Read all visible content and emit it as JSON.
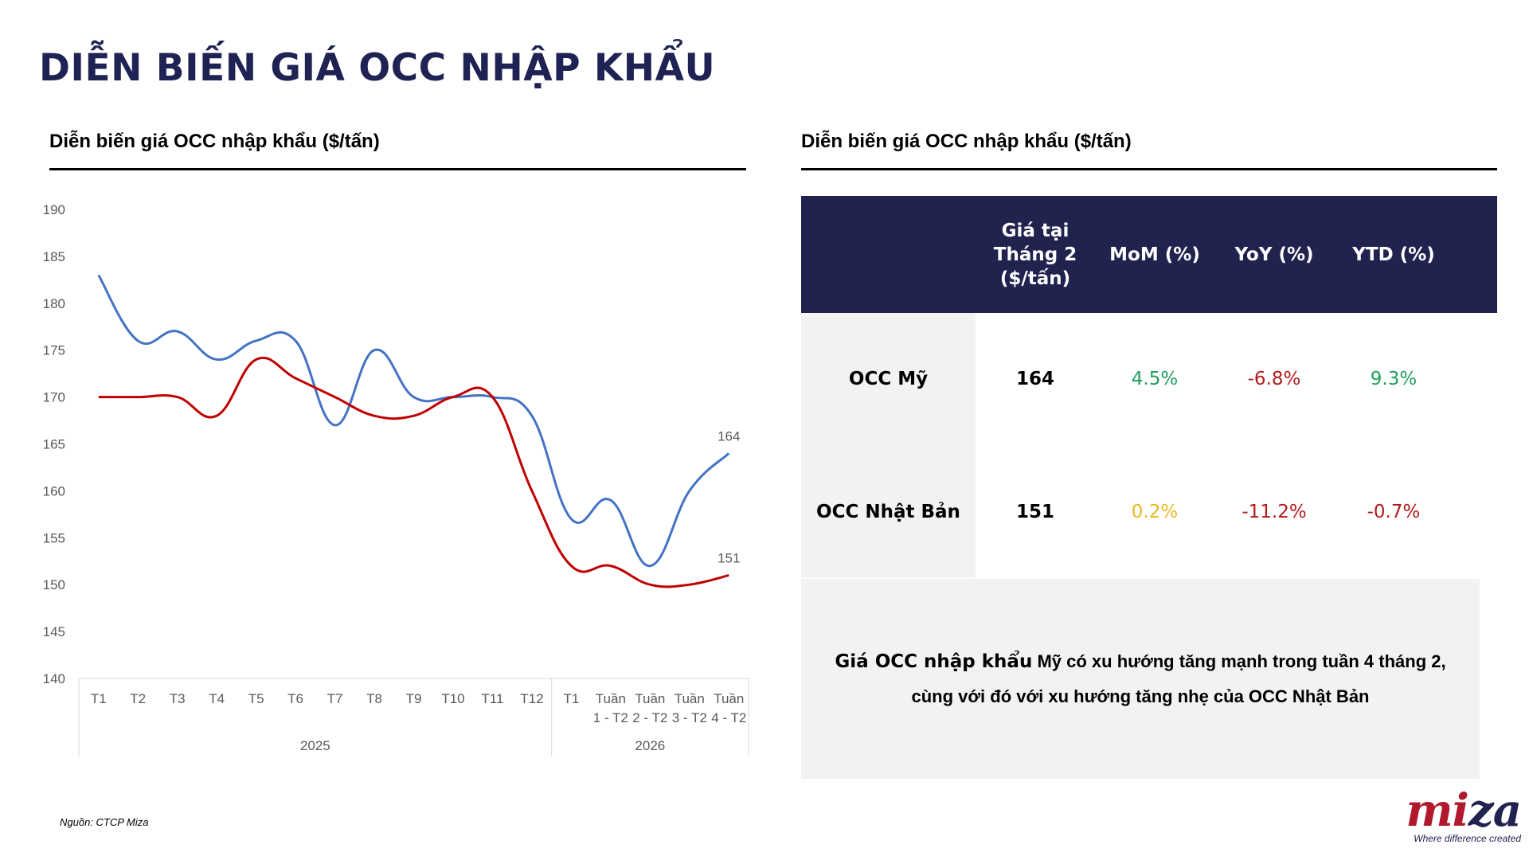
{
  "page": {
    "title": "DIỄN BIẾN GIÁ OCC NHẬP KHẨU",
    "source": "Nguồn: CTCP Miza"
  },
  "left_panel": {
    "title": "Diễn biến giá OCC nhập khẩu ($/tấn)"
  },
  "right_panel": {
    "title": "Diễn biến giá OCC nhập khẩu ($/tấn)"
  },
  "colors": {
    "us": "#4472c4",
    "japan": "#c00000",
    "header_bg": "#21234f",
    "title": "#1f2353"
  },
  "chart_data": {
    "type": "line",
    "title": "",
    "xlabel": "",
    "ylabel": "",
    "ylim": [
      140,
      190
    ],
    "yticks": [
      140,
      145,
      150,
      155,
      160,
      165,
      170,
      175,
      180,
      185,
      190
    ],
    "categories": [
      "T1",
      "T2",
      "T3",
      "T4",
      "T5",
      "T6",
      "T7",
      "T8",
      "T9",
      "T10",
      "T11",
      "T12",
      "T1",
      "Tuần 1 - T2",
      "Tuần 2 - T2",
      "Tuần 3 - T2",
      "Tuần 4 - T2"
    ],
    "groups": [
      {
        "label": "2025",
        "count": 12
      },
      {
        "label": "2026",
        "count": 5
      }
    ],
    "series": [
      {
        "values": [
          183,
          176,
          177,
          174,
          176,
          176,
          167,
          175,
          170,
          170,
          170,
          168,
          157,
          159,
          152,
          160,
          164
        ],
        "end_label": "164",
        "color": "#4472c4"
      },
      {
        "values": [
          170,
          170,
          170,
          168,
          174,
          172,
          170,
          168,
          168,
          170,
          170,
          160,
          152,
          152,
          150,
          150,
          151
        ],
        "end_label": "151",
        "color": "#c00000"
      }
    ],
    "grid": false,
    "legend": "none"
  },
  "table": {
    "headers": [
      "",
      "Giá tại Tháng 2 ($/tấn)",
      "MoM (%)",
      "YoY (%)",
      "YTD (%)"
    ],
    "rows": [
      {
        "label": "OCC Mỹ",
        "price": "164",
        "mom": "4.5%",
        "yoy": "-6.8%",
        "ytd": "9.3%"
      },
      {
        "label": "OCC Nhật Bản",
        "price": "151",
        "mom": "0.2%",
        "yoy": "-11.2%",
        "ytd": "-0.7%"
      }
    ]
  },
  "note": {
    "lead": "Giá OCC nhập khẩu",
    "text": "Mỹ có xu hướng tăng mạnh trong tuần 4 tháng 2, cùng với đó với xu hướng tăng nhẹ của OCC Nhật Bản"
  },
  "logo": {
    "word_a": "mi",
    "word_b": "za",
    "tagline": "Where difference created"
  }
}
